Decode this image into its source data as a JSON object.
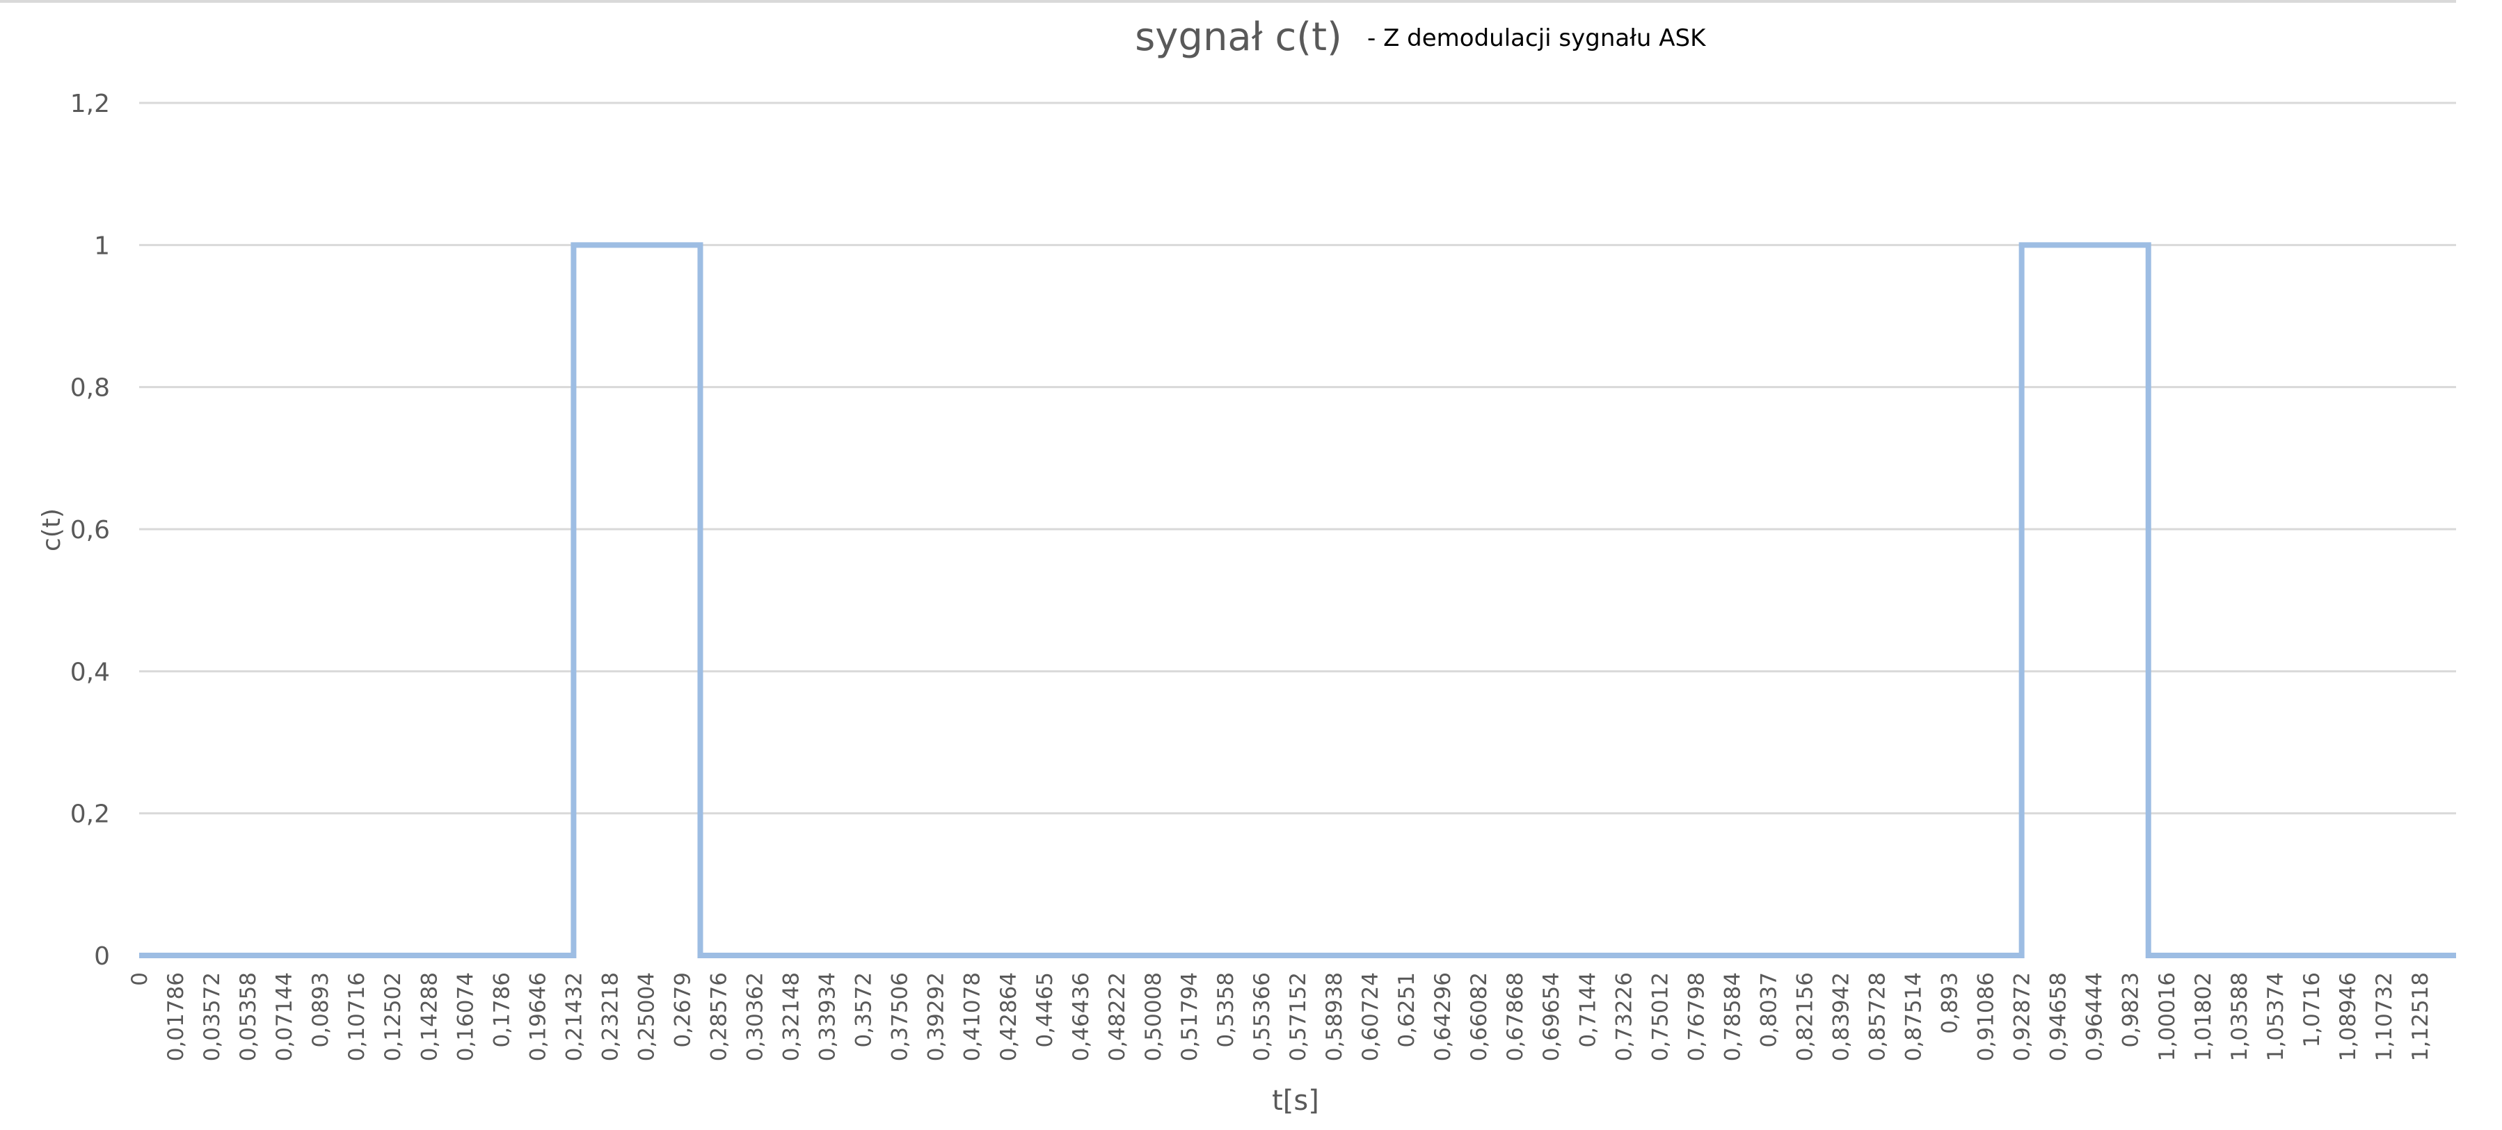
{
  "chart_data": {
    "type": "line",
    "title": "sygnał c(t)",
    "subtitle": "- Z demodulacji sygnału ASK",
    "xlabel": "t[s]",
    "ylabel": "c(t)",
    "ylim": [
      0,
      1.2
    ],
    "y_ticks": [
      "0",
      "0,2",
      "0,4",
      "0,6",
      "0,8",
      "1",
      "1,2"
    ],
    "x_tick_labels": [
      "0",
      "0,01786",
      "0,03572",
      "0,05358",
      "0,07144",
      "0,0893",
      "0,10716",
      "0,12502",
      "0,14288",
      "0,16074",
      "0,1786",
      "0,19646",
      "0,21432",
      "0,23218",
      "0,25004",
      "0,2679",
      "0,28576",
      "0,30362",
      "0,32148",
      "0,33934",
      "0,3572",
      "0,37506",
      "0,39292",
      "0,41078",
      "0,42864",
      "0,4465",
      "0,46436",
      "0,48222",
      "0,50008",
      "0,51794",
      "0,5358",
      "0,55366",
      "0,57152",
      "0,58938",
      "0,60724",
      "0,6251",
      "0,64296",
      "0,66082",
      "0,67868",
      "0,69654",
      "0,7144",
      "0,73226",
      "0,75012",
      "0,76798",
      "0,78584",
      "0,8037",
      "0,82156",
      "0,83942",
      "0,85728",
      "0,87514",
      "0,893",
      "0,91086",
      "0,92872",
      "0,94658",
      "0,96444",
      "0,9823",
      "1,00016",
      "1,01802",
      "1,03588",
      "1,05374",
      "1,0716",
      "1,08946",
      "1,10732",
      "1,12518"
    ],
    "x_step": 0.00893,
    "x_max": 1.14304,
    "series": [
      {
        "color": "#9dbde3",
        "points": [
          [
            0,
            0
          ],
          [
            0.21432,
            0
          ],
          [
            0.21432,
            1
          ],
          [
            0.27683,
            1
          ],
          [
            0.27683,
            0
          ],
          [
            0.92872,
            0
          ],
          [
            0.92872,
            1
          ],
          [
            0.99123,
            1
          ],
          [
            0.99123,
            0
          ],
          [
            1.14304,
            0
          ]
        ]
      }
    ],
    "grid": true,
    "legend": "none",
    "colors": {
      "grid": "#d9d9d9",
      "axis_text": "#595959",
      "title_text": "#595959",
      "subtitle_text": "#000000",
      "series": "#9dbde3"
    }
  }
}
